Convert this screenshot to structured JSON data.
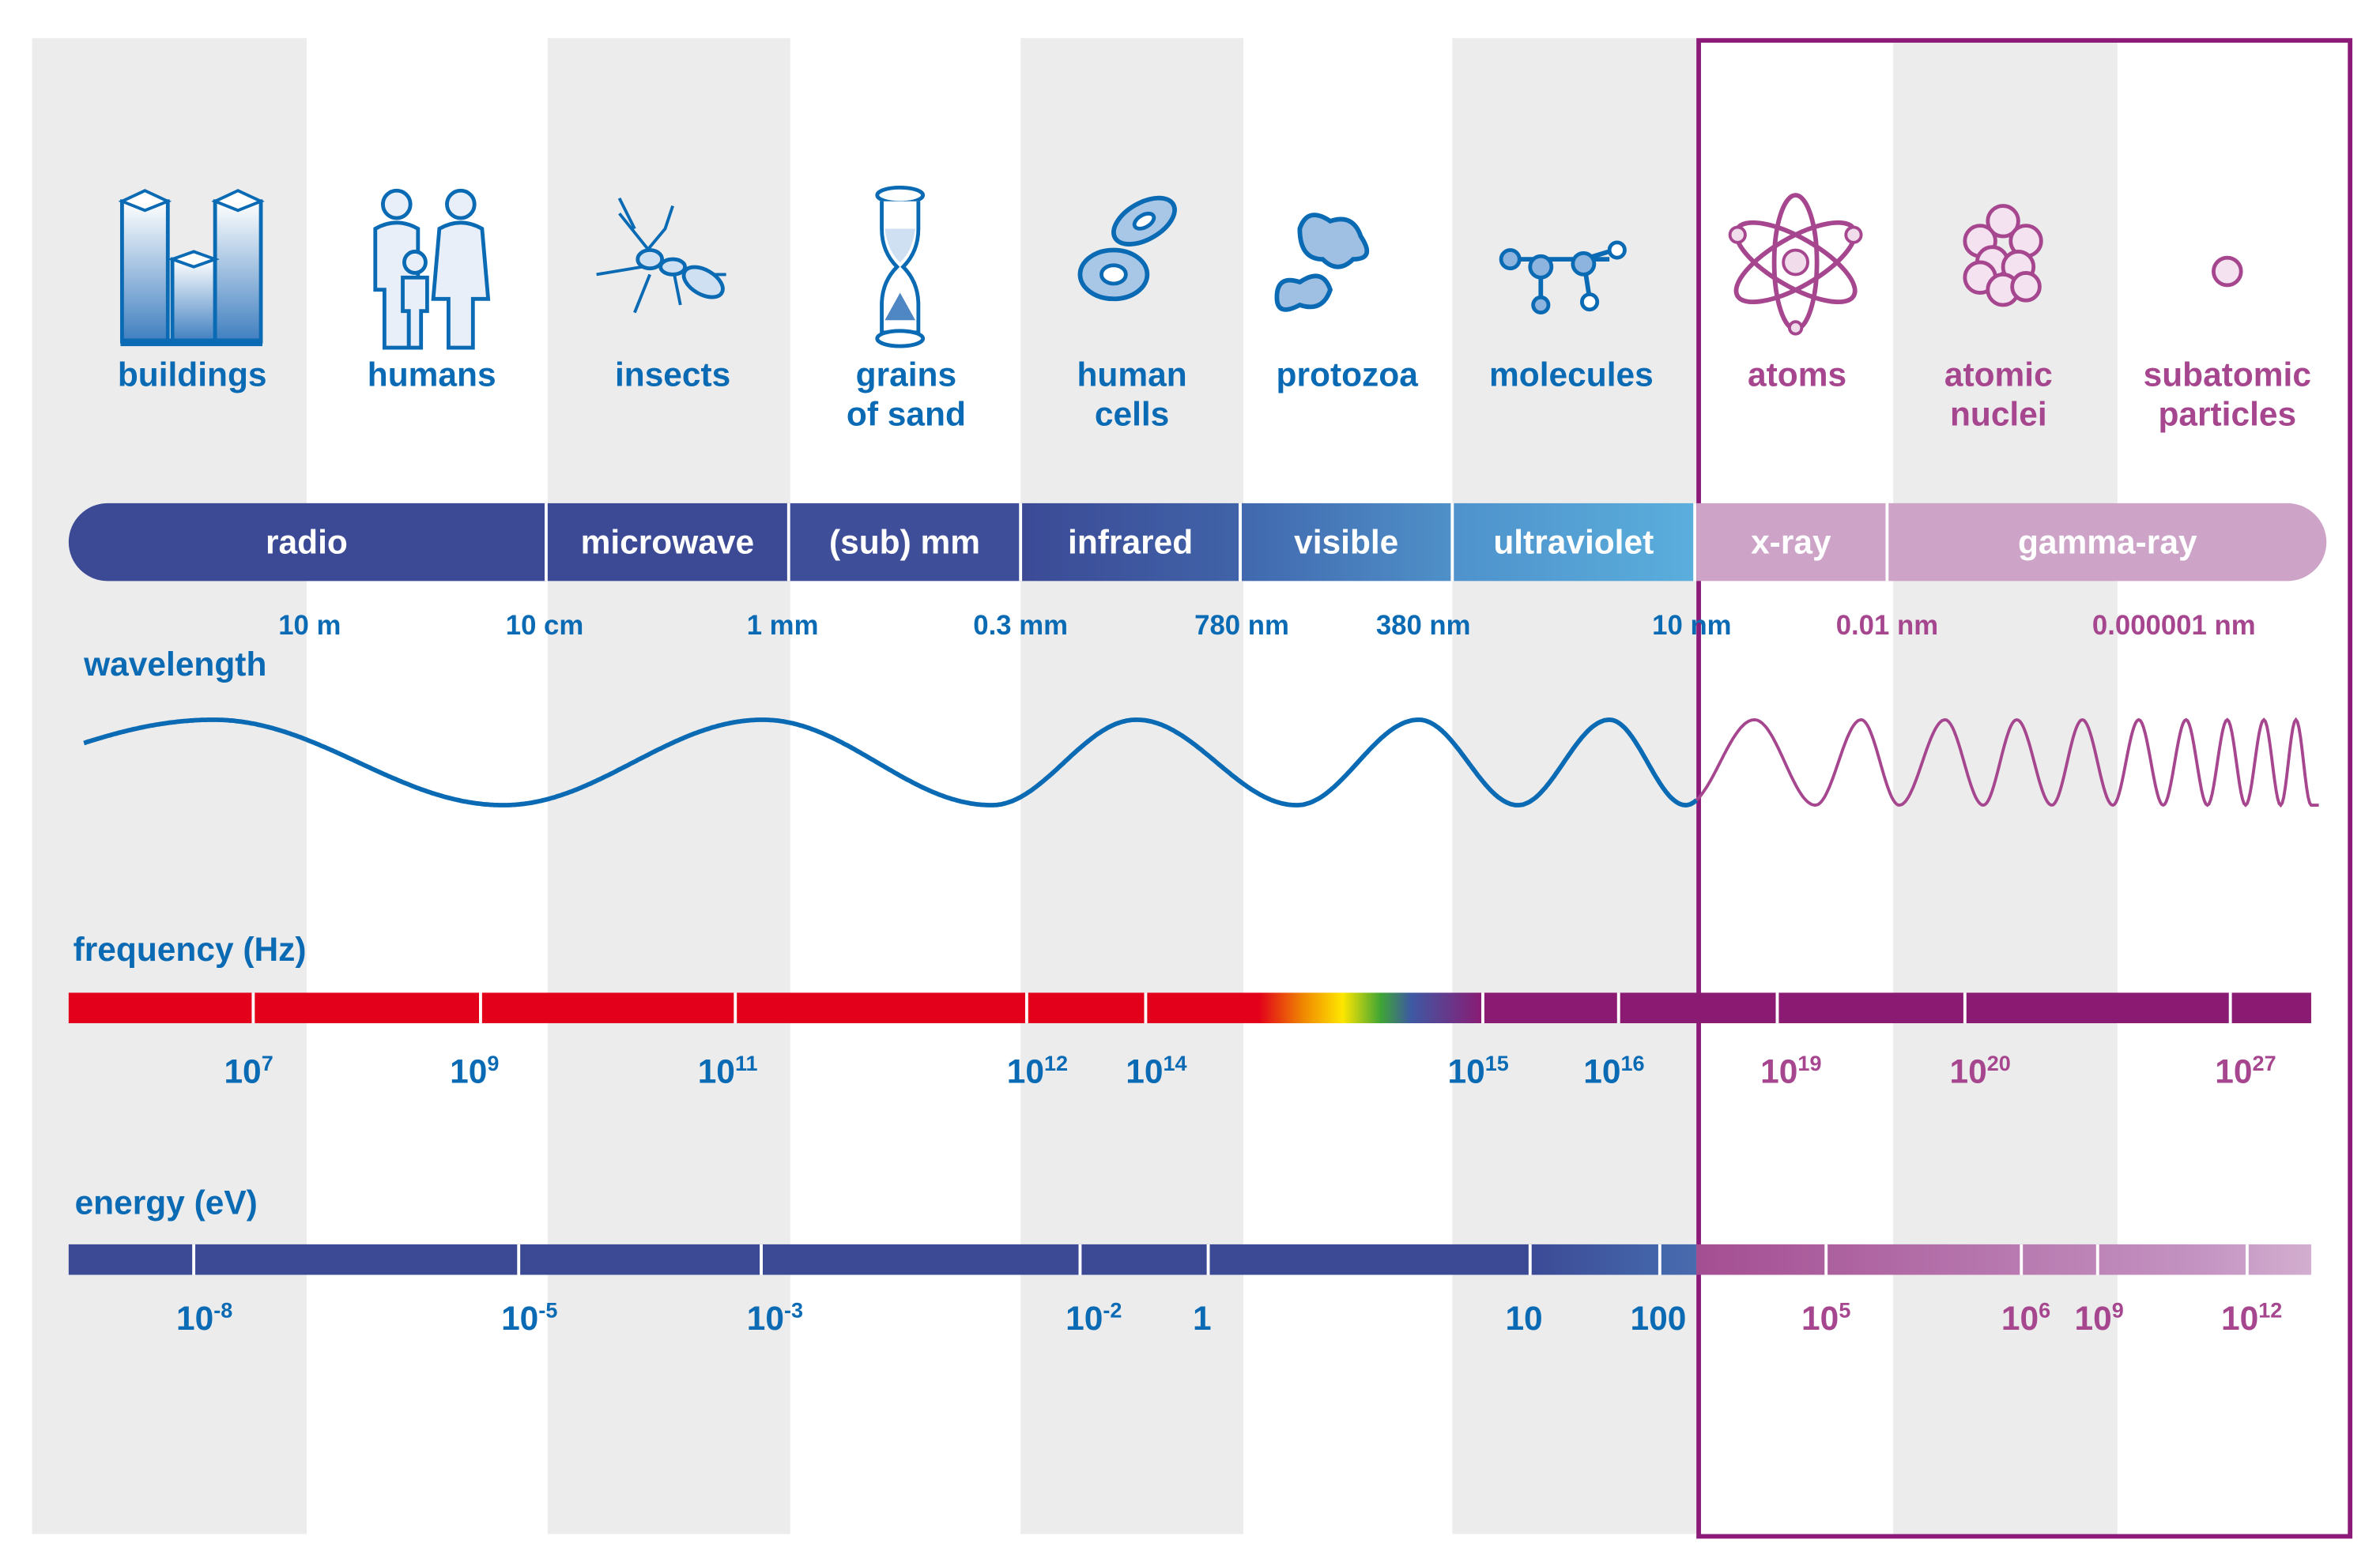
{
  "objects": [
    {
      "label": "buildings",
      "icon": "buildings-icon",
      "color": "blue"
    },
    {
      "label": "humans",
      "icon": "humans-icon",
      "color": "blue"
    },
    {
      "label": "insects",
      "icon": "ant-icon",
      "color": "blue"
    },
    {
      "label": "grains of sand",
      "line1": "grains",
      "line2": "of sand",
      "icon": "hourglass-icon",
      "color": "blue"
    },
    {
      "label": "human cells",
      "line1": "human",
      "line2": "cells",
      "icon": "cells-icon",
      "color": "blue"
    },
    {
      "label": "protozoa",
      "icon": "protozoa-icon",
      "color": "blue"
    },
    {
      "label": "molecules",
      "icon": "molecule-icon",
      "color": "blue"
    },
    {
      "label": "atoms",
      "icon": "atom-icon",
      "color": "pink"
    },
    {
      "label": "atomic nuclei",
      "line1": "atomic",
      "line2": "nuclei",
      "icon": "nucleus-icon",
      "color": "pink"
    },
    {
      "label": "subatomic particles",
      "line1": "subatomic",
      "line2": "particles",
      "icon": "particle-icon",
      "color": "pink"
    }
  ],
  "bands": [
    "radio",
    "microwave",
    "(sub) mm",
    "infrared",
    "visible",
    "ultraviolet",
    "x-ray",
    "gamma-ray"
  ],
  "wavelength": {
    "title": "wavelength",
    "labels": [
      "10 m",
      "10 cm",
      "1 mm",
      "0.3 mm",
      "780 nm",
      "380 nm",
      "10 nm",
      "0.01 nm",
      "0.000001 nm"
    ]
  },
  "frequency": {
    "title": "frequency (Hz)",
    "labels": [
      {
        "base": "10",
        "exp": "7"
      },
      {
        "base": "10",
        "exp": "9"
      },
      {
        "base": "10",
        "exp": "11"
      },
      {
        "base": "10",
        "exp": "12"
      },
      {
        "base": "10",
        "exp": "14"
      },
      {
        "base": "10",
        "exp": "15"
      },
      {
        "base": "10",
        "exp": "16"
      },
      {
        "base": "10",
        "exp": "19"
      },
      {
        "base": "10",
        "exp": "20"
      },
      {
        "base": "10",
        "exp": "27"
      }
    ]
  },
  "energy": {
    "title": "energy (eV)",
    "labels": [
      {
        "base": "10",
        "exp": "-8"
      },
      {
        "base": "10",
        "exp": "-5"
      },
      {
        "base": "10",
        "exp": "-3"
      },
      {
        "base": "10",
        "exp": "-2"
      },
      {
        "base": "1",
        "exp": ""
      },
      {
        "base": "10",
        "exp": ""
      },
      {
        "base": "100",
        "exp": ""
      },
      {
        "base": "10",
        "exp": "5"
      },
      {
        "base": "10",
        "exp": "6"
      },
      {
        "base": "10",
        "exp": "9"
      },
      {
        "base": "10",
        "exp": "12"
      }
    ]
  },
  "colors": {
    "blue": "#0a6ab3",
    "pink": "#a6468f",
    "frame": "#8b1a78",
    "radio": "#3c4a96",
    "uv": "#5aaedc",
    "xray": "#cda4c8",
    "red": "#e2001a",
    "purple": "#8b1a73"
  }
}
